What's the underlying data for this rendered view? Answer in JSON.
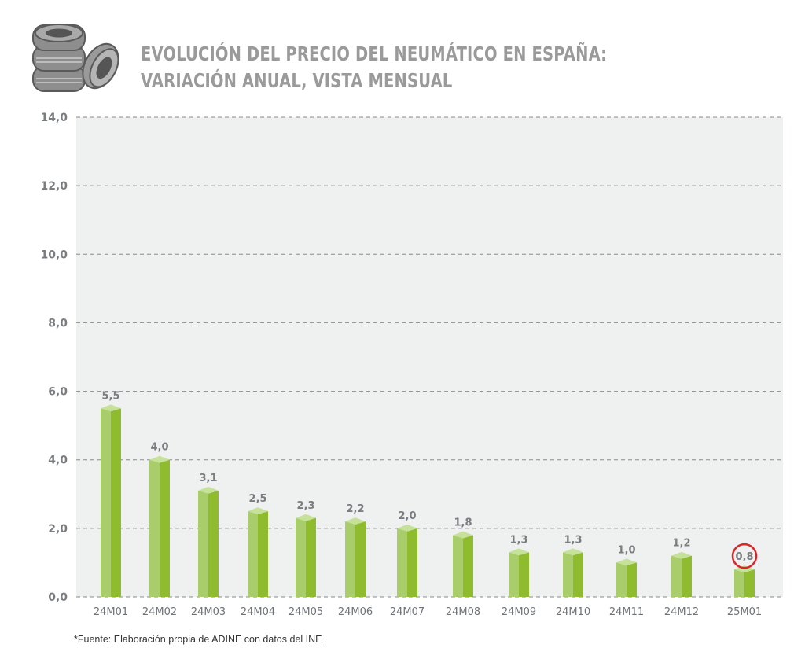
{
  "header": {
    "logo_icon": "tire-stack-icon",
    "title_line1": "EVOLUCIÓN DEL PRECIO DEL NEUMÁTICO EN ESPAÑA:",
    "title_line2": "VARIACIÓN ANUAL, VISTA MENSUAL"
  },
  "chart_data": {
    "type": "bar",
    "title": "EVOLUCIÓN DEL PRECIO DEL NEUMÁTICO EN ESPAÑA: VARIACIÓN ANUAL, VISTA MENSUAL",
    "xlabel": "",
    "ylabel": "",
    "ylim": [
      0,
      14
    ],
    "yticks": [
      0,
      2,
      4,
      6,
      8,
      10,
      12,
      14
    ],
    "ytick_labels": [
      "0,0",
      "2,0",
      "4,0",
      "6,0",
      "8,0",
      "10,0",
      "12,0",
      "14,0"
    ],
    "grid": true,
    "categories": [
      "24M01",
      "24M02",
      "24M03",
      "24M04",
      "24M05",
      "24M06",
      "24M07",
      "24M08",
      "24M09",
      "24M10",
      "24M11",
      "24M12",
      "25M01"
    ],
    "values": [
      5.5,
      4.0,
      3.1,
      2.5,
      2.3,
      2.2,
      2.0,
      1.8,
      1.3,
      1.3,
      1.0,
      1.2,
      0.8
    ],
    "value_labels": [
      "5,5",
      "4,0",
      "3,1",
      "2,5",
      "2,3",
      "2,2",
      "2,0",
      "1,8",
      "1,3",
      "1,3",
      "1,0",
      "1,2",
      "0,8"
    ],
    "highlighted_category": "25M01",
    "colors": {
      "bar_left": "#a8cd6a",
      "bar_right": "#8fbb2f",
      "bar_top": "#c6e19a",
      "plot_bg": "#eff0f0",
      "grid": "#8a8a8a",
      "highlight_ring": "#d8262b"
    }
  },
  "footer": {
    "source": "*Fuente: Elaboración propia de ADINE con datos del INE"
  }
}
